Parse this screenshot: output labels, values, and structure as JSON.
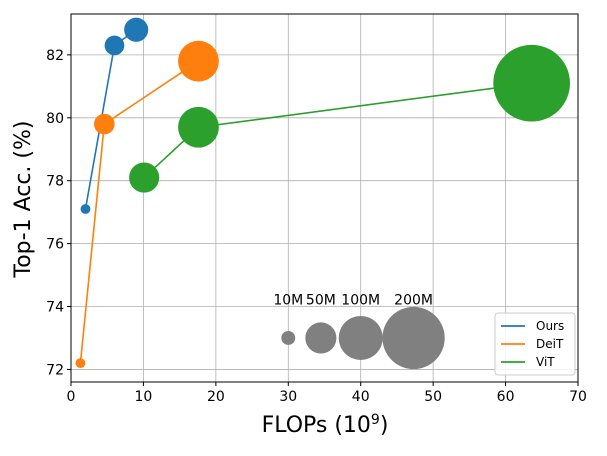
{
  "chart_data": {
    "type": "scatter",
    "xlabel": "FLOPs (10",
    "xlabel_exp": "9",
    "xlabel_close": ")",
    "ylabel": "Top-1 Acc. (%)",
    "xlim": [
      0,
      70
    ],
    "ylim": [
      71.6,
      83.3
    ],
    "x_ticks": [
      0,
      10,
      20,
      30,
      40,
      50,
      60,
      70
    ],
    "y_ticks": [
      72,
      74,
      76,
      78,
      80,
      82
    ],
    "grid": true,
    "legend_position": "bottom-right",
    "series": [
      {
        "name": "Ours",
        "color": "#1f77b4",
        "points": [
          {
            "x": 2.0,
            "y": 77.1,
            "params_m": 5
          },
          {
            "x": 6.0,
            "y": 82.3,
            "params_m": 20
          },
          {
            "x": 9.0,
            "y": 82.8,
            "params_m": 30
          }
        ]
      },
      {
        "name": "DeiT",
        "color": "#ff7f0e",
        "points": [
          {
            "x": 1.3,
            "y": 72.2,
            "params_m": 5
          },
          {
            "x": 4.6,
            "y": 79.8,
            "params_m": 22
          },
          {
            "x": 17.6,
            "y": 81.8,
            "params_m": 86
          }
        ]
      },
      {
        "name": "ViT",
        "color": "#2ca02c",
        "points": [
          {
            "x": 10.1,
            "y": 78.1,
            "params_m": 47
          },
          {
            "x": 17.6,
            "y": 79.7,
            "params_m": 86
          },
          {
            "x": 63.6,
            "y": 81.1,
            "params_m": 304
          }
        ]
      }
    ],
    "size_legend": {
      "color": "#808080",
      "y": 73.0,
      "items": [
        {
          "label": "10M",
          "params_m": 10,
          "x": 30
        },
        {
          "label": "50M",
          "params_m": 50,
          "x": 34.5
        },
        {
          "label": "100M",
          "params_m": 100,
          "x": 40
        },
        {
          "label": "200M",
          "params_m": 200,
          "x": 47.3
        }
      ]
    }
  }
}
